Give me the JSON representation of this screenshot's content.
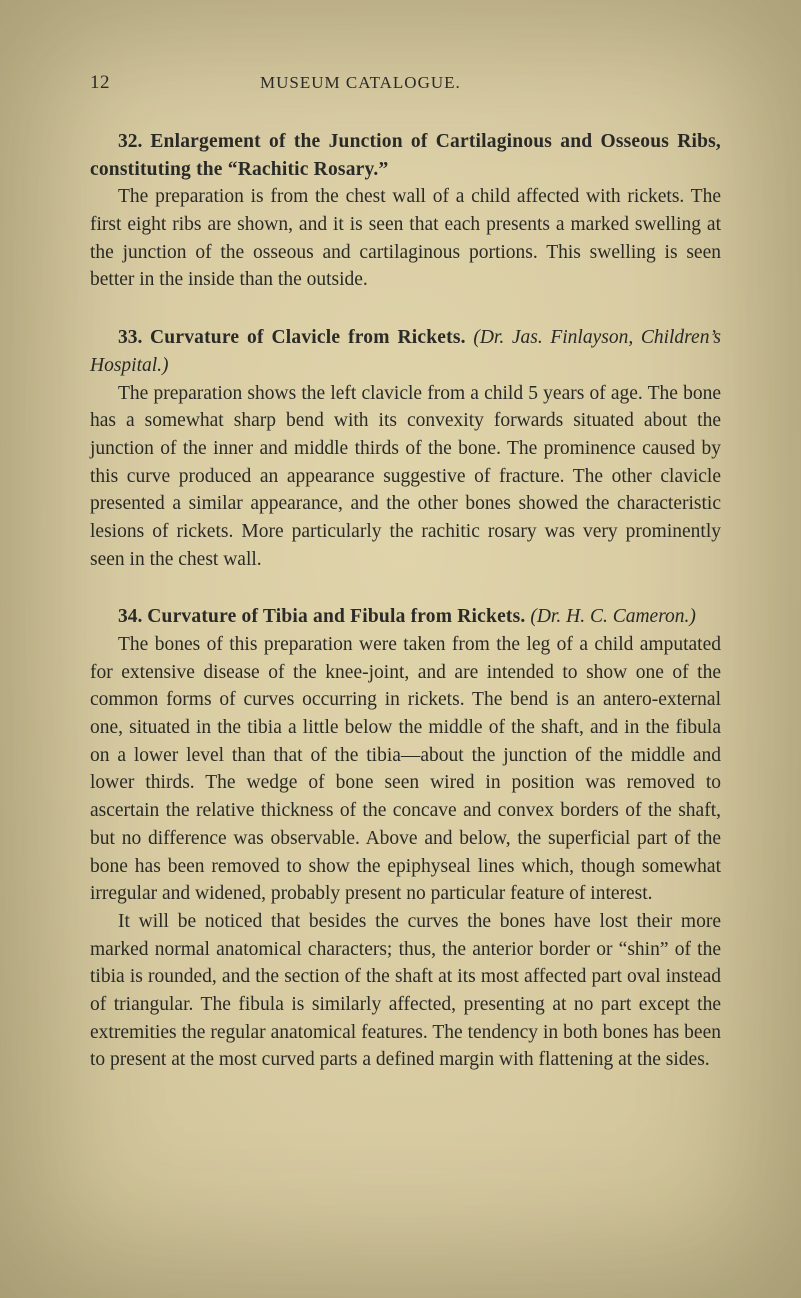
{
  "page_number": "12",
  "running_title": "MUSEUM CATALOGUE.",
  "entries": [
    {
      "num": "32.",
      "title_bold": "Enlargement of the Junction of Cartilaginous and Osseous Ribs, constituting the “Rachitic Rosary.”",
      "body": "The preparation is from the chest wall of a child affected with rickets. The first eight ribs are shown, and it is seen that each presents a marked swelling at the junction of the osseous and cartilaginous portions. This swelling is seen better in the inside than the outside."
    },
    {
      "num": "33.",
      "title_bold": "Curvature of Clavicle from Rickets.",
      "attrib": "(Dr. Jas. Finlayson, Children’s Hospital.)",
      "body": "The preparation shows the left clavicle from a child 5 years of age. The bone has a somewhat sharp bend with its convexity forwards situated about the junction of the inner and middle thirds of the bone. The prominence caused by this curve produced an appearance suggestive of fracture. The other clavicle presented a similar appearance, and the other bones showed the characteristic lesions of rickets. More particularly the rachitic rosary was very prominently seen in the chest wall."
    },
    {
      "num": "34.",
      "title_bold": "Curvature of Tibia and Fibula from Rickets.",
      "attrib": "(Dr. H. C. Cameron.)",
      "body1": "The bones of this preparation were taken from the leg of a child amputated for extensive disease of the knee-joint, and are intended to show one of the common forms of curves occurring in rickets. The bend is an antero-external one, situated in the tibia a little below the middle of the shaft, and in the fibula on a lower level than that of the tibia—about the junction of the middle and lower thirds. The wedge of bone seen wired in position was removed to ascertain the relative thickness of the concave and convex borders of the shaft, but no difference was observable. Above and below, the superficial part of the bone has been removed to show the epiphyseal lines which, though somewhat irregular and widened, probably present no particular feature of interest.",
      "body2": "It will be noticed that besides the curves the bones have lost their more marked normal anatomical characters; thus, the anterior border or “shin” of the tibia is rounded, and the section of the shaft at its most affected part oval instead of triangular. The fibula is similarly affected, presenting at no part except the extremities the regular anatomical features. The tendency in both bones has been to present at the most curved parts a defined margin with flattening at the sides."
    }
  ]
}
